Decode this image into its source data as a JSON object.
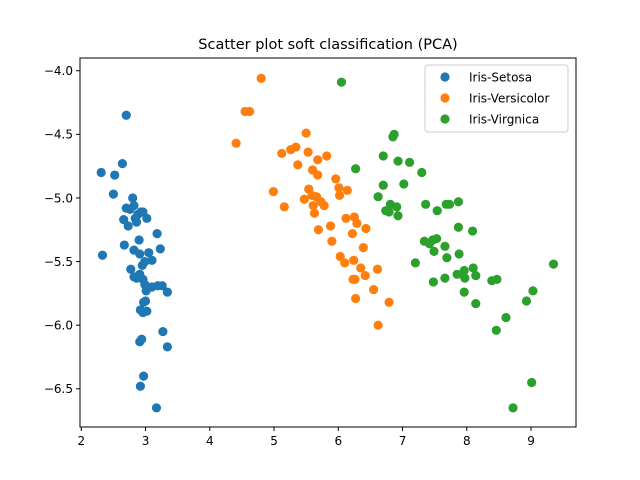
{
  "chart_data": {
    "type": "scatter",
    "title": "Scatter plot soft classification (PCA)",
    "xlabel": "",
    "ylabel": "",
    "xlim": [
      1.98,
      9.7
    ],
    "ylim": [
      -6.8,
      -3.9
    ],
    "xticks": [
      2,
      3,
      4,
      5,
      6,
      7,
      8,
      9
    ],
    "yticks": [
      -4.0,
      -4.5,
      -5.0,
      -5.5,
      -6.0,
      -6.5
    ],
    "xtick_labels": [
      "2",
      "3",
      "4",
      "5",
      "6",
      "7",
      "8",
      "9"
    ],
    "ytick_labels": [
      "−4.0",
      "−4.5",
      "−5.0",
      "−5.5",
      "−6.0",
      "−6.5"
    ],
    "grid": false,
    "legend_position": "top-right",
    "series": [
      {
        "name": "Iris-Setosa",
        "color": "#1f77b4",
        "points": [
          [
            2.31,
            -4.8
          ],
          [
            2.52,
            -4.82
          ],
          [
            2.5,
            -4.97
          ],
          [
            2.64,
            -4.73
          ],
          [
            2.7,
            -4.35
          ],
          [
            2.33,
            -5.45
          ],
          [
            2.66,
            -5.17
          ],
          [
            2.67,
            -5.37
          ],
          [
            2.7,
            -5.08
          ],
          [
            2.73,
            -5.22
          ],
          [
            2.76,
            -5.09
          ],
          [
            2.8,
            -5.0
          ],
          [
            2.82,
            -5.06
          ],
          [
            2.84,
            -5.16
          ],
          [
            2.86,
            -5.19
          ],
          [
            2.88,
            -5.13
          ],
          [
            2.93,
            -5.11
          ],
          [
            2.96,
            -5.11
          ],
          [
            3.02,
            -5.16
          ],
          [
            2.82,
            -5.41
          ],
          [
            2.9,
            -5.33
          ],
          [
            2.91,
            -5.44
          ],
          [
            2.95,
            -5.53
          ],
          [
            2.99,
            -5.5
          ],
          [
            3.05,
            -5.43
          ],
          [
            3.1,
            -5.49
          ],
          [
            3.18,
            -5.28
          ],
          [
            3.23,
            -5.4
          ],
          [
            2.77,
            -5.56
          ],
          [
            2.82,
            -5.62
          ],
          [
            2.86,
            -5.63
          ],
          [
            2.91,
            -5.6
          ],
          [
            2.96,
            -5.64
          ],
          [
            2.99,
            -5.68
          ],
          [
            3.01,
            -5.73
          ],
          [
            3.1,
            -5.7
          ],
          [
            3.19,
            -5.69
          ],
          [
            3.26,
            -5.69
          ],
          [
            3.34,
            -5.74
          ],
          [
            2.97,
            -5.82
          ],
          [
            3.0,
            -5.81
          ],
          [
            2.92,
            -5.88
          ],
          [
            2.96,
            -5.9
          ],
          [
            3.02,
            -5.89
          ],
          [
            3.27,
            -6.05
          ],
          [
            2.91,
            -6.13
          ],
          [
            2.94,
            -6.11
          ],
          [
            3.34,
            -6.17
          ],
          [
            2.97,
            -6.4
          ],
          [
            2.92,
            -6.48
          ],
          [
            3.17,
            -6.65
          ]
        ]
      },
      {
        "name": "Iris-Versicolor",
        "color": "#ff7f0e",
        "points": [
          [
            4.8,
            -4.06
          ],
          [
            4.55,
            -4.32
          ],
          [
            4.62,
            -4.32
          ],
          [
            4.41,
            -4.57
          ],
          [
            5.12,
            -4.65
          ],
          [
            5.26,
            -4.62
          ],
          [
            5.34,
            -4.6
          ],
          [
            5.5,
            -4.49
          ],
          [
            5.53,
            -4.64
          ],
          [
            5.68,
            -4.7
          ],
          [
            5.82,
            -4.67
          ],
          [
            5.37,
            -4.74
          ],
          [
            5.6,
            -4.78
          ],
          [
            5.68,
            -4.82
          ],
          [
            4.99,
            -4.95
          ],
          [
            5.16,
            -5.07
          ],
          [
            5.47,
            -5.01
          ],
          [
            5.54,
            -4.93
          ],
          [
            5.59,
            -4.98
          ],
          [
            5.61,
            -5.06
          ],
          [
            5.63,
            -5.12
          ],
          [
            5.66,
            -4.99
          ],
          [
            5.73,
            -5.03
          ],
          [
            5.78,
            -5.06
          ],
          [
            5.69,
            -5.25
          ],
          [
            5.88,
            -5.22
          ],
          [
            5.96,
            -4.85
          ],
          [
            6.01,
            -4.92
          ],
          [
            6.02,
            -4.98
          ],
          [
            6.14,
            -4.94
          ],
          [
            6.12,
            -5.16
          ],
          [
            6.25,
            -5.15
          ],
          [
            6.29,
            -5.2
          ],
          [
            6.43,
            -5.24
          ],
          [
            6.22,
            -5.28
          ],
          [
            6.39,
            -5.39
          ],
          [
            6.03,
            -5.46
          ],
          [
            6.1,
            -5.51
          ],
          [
            6.24,
            -5.49
          ],
          [
            6.35,
            -5.55
          ],
          [
            6.42,
            -5.61
          ],
          [
            6.61,
            -5.56
          ],
          [
            6.26,
            -5.64
          ],
          [
            6.23,
            -5.64
          ],
          [
            6.27,
            -5.79
          ],
          [
            6.55,
            -5.72
          ],
          [
            6.79,
            -5.82
          ],
          [
            6.62,
            -6.0
          ],
          [
            5.9,
            -5.34
          ]
        ]
      },
      {
        "name": "Iris-Virgnica",
        "color": "#2ca02c",
        "points": [
          [
            6.05,
            -4.09
          ],
          [
            6.87,
            -4.5
          ],
          [
            6.85,
            -4.52
          ],
          [
            6.7,
            -4.67
          ],
          [
            6.93,
            -4.71
          ],
          [
            7.11,
            -4.72
          ],
          [
            6.27,
            -4.77
          ],
          [
            7.3,
            -4.8
          ],
          [
            6.7,
            -4.9
          ],
          [
            7.02,
            -4.89
          ],
          [
            6.62,
            -4.99
          ],
          [
            6.81,
            -5.05
          ],
          [
            6.91,
            -5.07
          ],
          [
            7.36,
            -5.05
          ],
          [
            7.68,
            -5.05
          ],
          [
            7.73,
            -5.05
          ],
          [
            7.87,
            -5.03
          ],
          [
            6.74,
            -5.1
          ],
          [
            6.79,
            -5.11
          ],
          [
            6.93,
            -5.14
          ],
          [
            7.54,
            -5.1
          ],
          [
            7.87,
            -5.23
          ],
          [
            8.09,
            -5.26
          ],
          [
            7.34,
            -5.34
          ],
          [
            7.42,
            -5.36
          ],
          [
            7.47,
            -5.33
          ],
          [
            7.53,
            -5.32
          ],
          [
            7.49,
            -5.42
          ],
          [
            7.66,
            -5.38
          ],
          [
            7.69,
            -5.47
          ],
          [
            7.88,
            -5.44
          ],
          [
            7.2,
            -5.51
          ],
          [
            7.96,
            -5.57
          ],
          [
            8.1,
            -5.55
          ],
          [
            7.85,
            -5.6
          ],
          [
            7.97,
            -5.63
          ],
          [
            8.14,
            -5.61
          ],
          [
            7.48,
            -5.66
          ],
          [
            7.66,
            -5.63
          ],
          [
            8.39,
            -5.65
          ],
          [
            8.47,
            -5.64
          ],
          [
            7.96,
            -5.74
          ],
          [
            8.14,
            -5.83
          ],
          [
            8.93,
            -5.81
          ],
          [
            9.03,
            -5.73
          ],
          [
            9.35,
            -5.52
          ],
          [
            8.61,
            -5.94
          ],
          [
            8.46,
            -6.04
          ],
          [
            9.01,
            -6.45
          ],
          [
            8.72,
            -6.65
          ]
        ]
      }
    ]
  }
}
